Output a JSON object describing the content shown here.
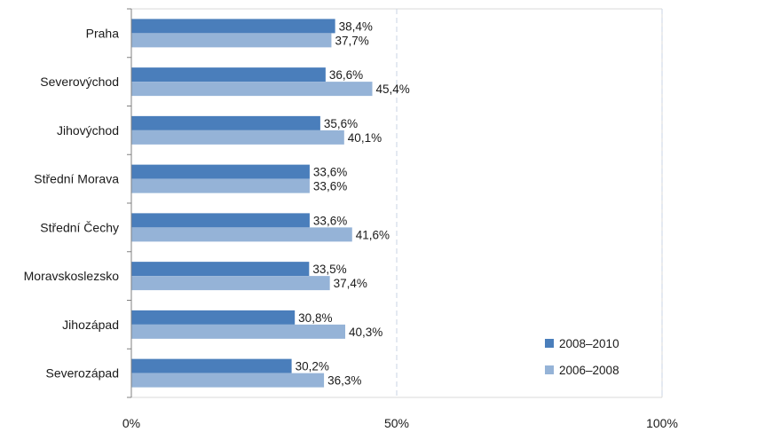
{
  "chart_data": {
    "type": "bar",
    "orientation": "horizontal",
    "categories": [
      "Praha",
      "Severovýchod",
      "Jihovýchod",
      "Střední Morava",
      "Střední Čechy",
      "Moravskoslezsko",
      "Jihozápad",
      "Severozápad"
    ],
    "series": [
      {
        "name": "2008–2010",
        "color": "#4a7ebb",
        "values": [
          38.4,
          36.6,
          35.6,
          33.6,
          33.6,
          33.5,
          30.8,
          30.2
        ],
        "labels": [
          "38,4%",
          "36,6%",
          "35,6%",
          "33,6%",
          "33,6%",
          "33,5%",
          "30,8%",
          "30,2%"
        ]
      },
      {
        "name": "2006–2008",
        "color": "#95b3d7",
        "values": [
          37.7,
          45.4,
          40.1,
          33.6,
          41.6,
          37.4,
          40.3,
          36.3
        ],
        "labels": [
          "37,7%",
          "45,4%",
          "40,1%",
          "33,6%",
          "41,6%",
          "37,4%",
          "40,3%",
          "36,3%"
        ]
      }
    ],
    "xlim": [
      0,
      100
    ],
    "xticks": [
      0,
      50,
      100
    ],
    "xtick_labels": [
      "0%",
      "50%",
      "100%"
    ],
    "grid": "vertical-dashed",
    "legend_position": "bottom-right"
  }
}
